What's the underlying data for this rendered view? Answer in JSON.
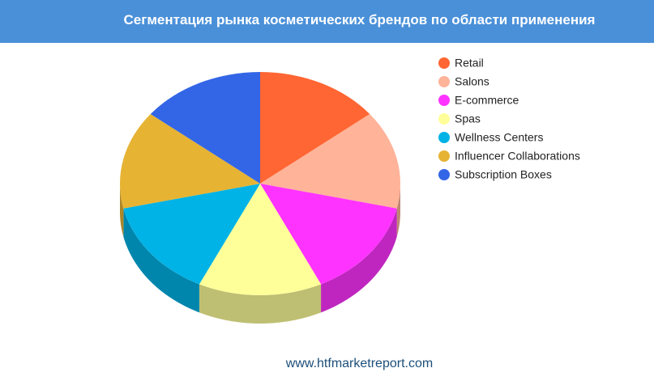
{
  "chart_data": {
    "type": "pie3d",
    "title": "Сегментация рынка косметических брендов по области применения",
    "categories": [
      "Retail",
      "Salons",
      "E-commerce",
      "Spas",
      "Wellness Centers",
      "Influencer Collaborations",
      "Subscription Boxes"
    ],
    "values": [
      14.29,
      14.29,
      14.29,
      14.29,
      14.29,
      14.29,
      14.29
    ],
    "colors": [
      "#ff6633",
      "#ffb399",
      "#ff33ff",
      "#ffff99",
      "#00b3e6",
      "#e6b333",
      "#3366e6"
    ],
    "legend": "right",
    "source": "www.htfmarketreport.com"
  }
}
